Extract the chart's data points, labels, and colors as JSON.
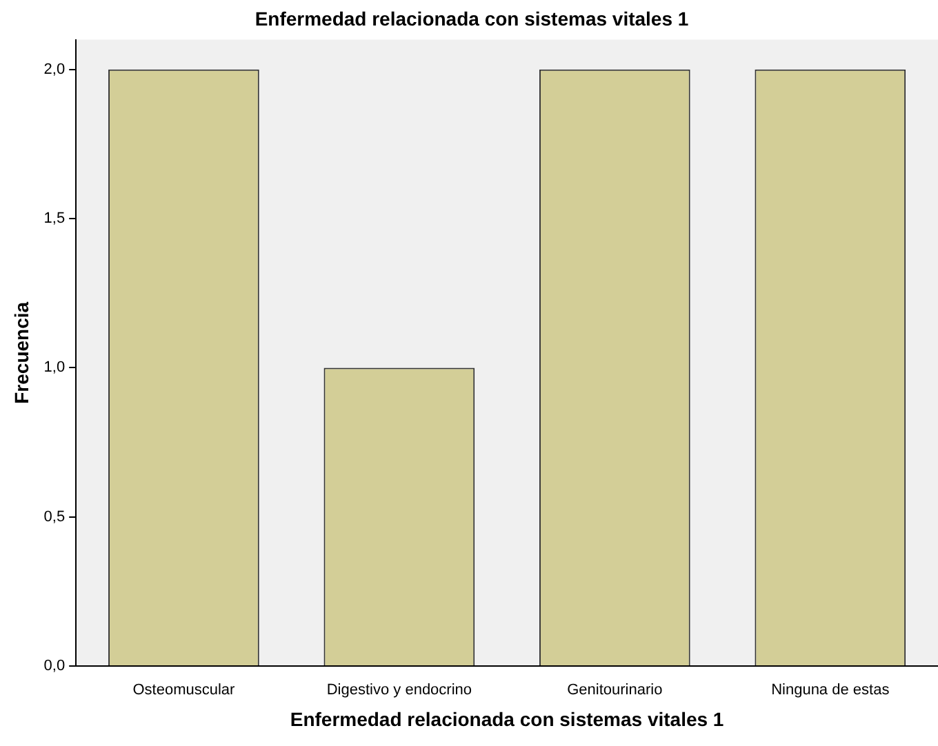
{
  "chart_data": {
    "type": "bar",
    "title": "Enfermedad relacionada con sistemas vitales 1",
    "xlabel": "Enfermedad relacionada con sistemas vitales 1",
    "ylabel": "Frecuencia",
    "categories": [
      "Osteomuscular",
      "Digestivo y endocrino",
      "Genitourinario",
      "Ninguna de estas"
    ],
    "values": [
      2,
      1,
      2,
      2
    ],
    "color": "#d3ce97",
    "ylim": [
      0,
      2.1
    ],
    "yticks": [
      {
        "value": 0,
        "label": "0,0"
      },
      {
        "value": 0.5,
        "label": "0,5"
      },
      {
        "value": 1,
        "label": "1,0"
      },
      {
        "value": 1.5,
        "label": "1,5"
      },
      {
        "value": 2,
        "label": "2,0"
      }
    ],
    "grid": false,
    "legend": false
  }
}
